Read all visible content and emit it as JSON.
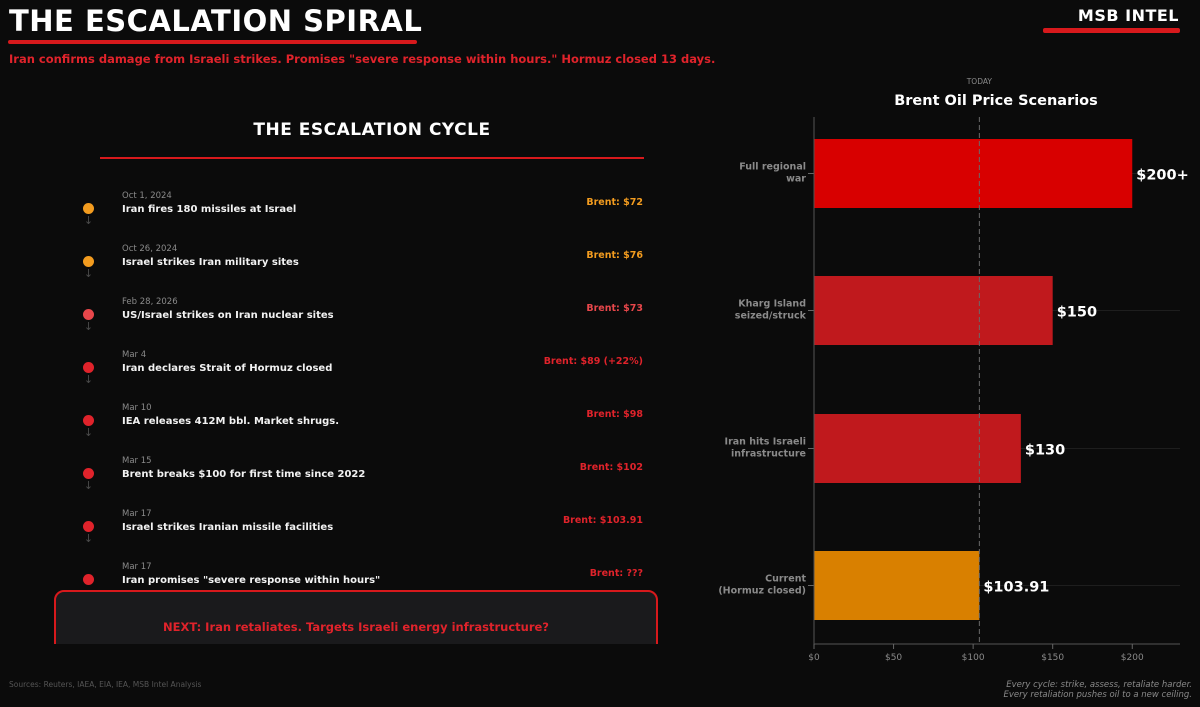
{
  "header": {
    "title": "THE ESCALATION SPIRAL",
    "brand": "MSB INTEL",
    "subtitle": "Iran confirms damage from Israeli strikes. Promises \"severe response within hours.\" Hormuz closed 13 days."
  },
  "timeline": {
    "title": "THE ESCALATION CYCLE",
    "events": [
      {
        "date": "Oct 1, 2024",
        "desc": "Iran fires 180 missiles at Israel",
        "price": "Brent: $72",
        "color": "#f39c1f"
      },
      {
        "date": "Oct 26, 2024",
        "desc": "Israel strikes Iran military sites",
        "price": "Brent: $76",
        "color": "#f39c1f"
      },
      {
        "date": "Feb 28, 2026",
        "desc": "US/Israel strikes on Iran nuclear sites",
        "price": "Brent: $73",
        "color": "#e8474b"
      },
      {
        "date": "Mar 4",
        "desc": "Iran declares Strait of Hormuz closed",
        "price": "Brent: $89 (+22%)",
        "color": "#e0232b"
      },
      {
        "date": "Mar 10",
        "desc": "IEA releases 412M bbl. Market shrugs.",
        "price": "Brent: $98",
        "color": "#e0232b"
      },
      {
        "date": "Mar 15",
        "desc": "Brent breaks $100 for first time since 2022",
        "price": "Brent: $102",
        "color": "#e0232b"
      },
      {
        "date": "Mar 17",
        "desc": "Israel strikes Iranian missile facilities",
        "price": "Brent: $103.91",
        "color": "#e0232b"
      },
      {
        "date": "Mar 17",
        "desc": "Iran promises \"severe response within hours\"",
        "price": "Brent: ???",
        "color": "#e0232b"
      }
    ],
    "next": "NEXT: Iran retaliates. Targets Israeli energy infrastructure?"
  },
  "chart_data": {
    "type": "bar",
    "orientation": "horizontal",
    "title": "Brent Oil Price Scenarios",
    "reference_line": {
      "value": 103.91,
      "label": "TODAY"
    },
    "categories": [
      "Full regional\nwar",
      "Kharg Island\nseized/struck",
      "Iran hits Israeli\ninfrastructure",
      "Current\n(Hormuz closed)"
    ],
    "values": [
      200,
      150,
      130,
      103.91
    ],
    "data_labels": [
      "$200+",
      "$150",
      "$130",
      "$103.91"
    ],
    "colors": [
      "#d80000",
      "#c0191d",
      "#c0191d",
      "#d98000"
    ],
    "xlim": [
      0,
      230
    ],
    "xticks": [
      0,
      50,
      100,
      150,
      200
    ],
    "xtick_labels": [
      "$0",
      "$50",
      "$100",
      "$150",
      "$200"
    ],
    "grid": true
  },
  "footer": {
    "sources": "Sources: Reuters, IAEA, EIA, IEA, MSB Intel Analysis",
    "note_line1": "Every cycle: strike, assess, retaliate harder.",
    "note_line2": "Every retaliation pushes oil to a new ceiling."
  }
}
